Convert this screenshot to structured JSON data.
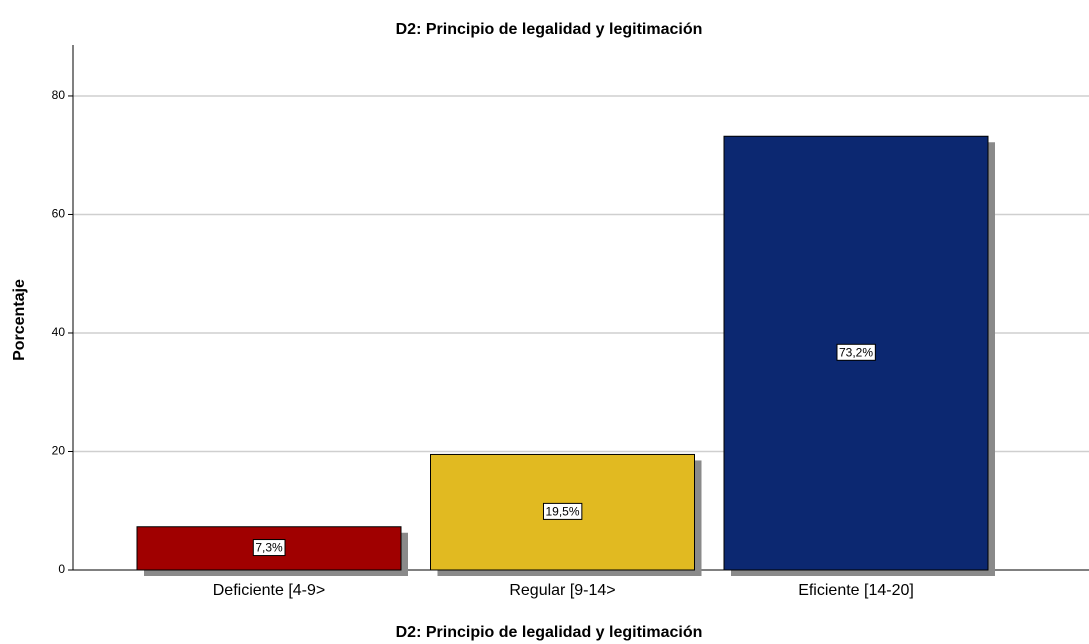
{
  "chart_data": {
    "type": "bar",
    "title": "D2: Principio de legalidad y legitimación",
    "x_label": "D2: Principio de legalidad y legitimación",
    "y_label": "Porcentaje",
    "categories": [
      "Deficiente [4-9>",
      "Regular [9-14>",
      "Eficiente [14-20]"
    ],
    "values": [
      7.3,
      19.5,
      73.2
    ],
    "value_labels": [
      "7,3%",
      "19,5%",
      "73,2%"
    ],
    "colors": [
      "#a00000",
      "#e1ba21",
      "#0c2871"
    ],
    "ylim": [
      0,
      88.6
    ],
    "yticks": [
      0,
      20,
      40,
      60,
      80
    ],
    "grid": true
  }
}
